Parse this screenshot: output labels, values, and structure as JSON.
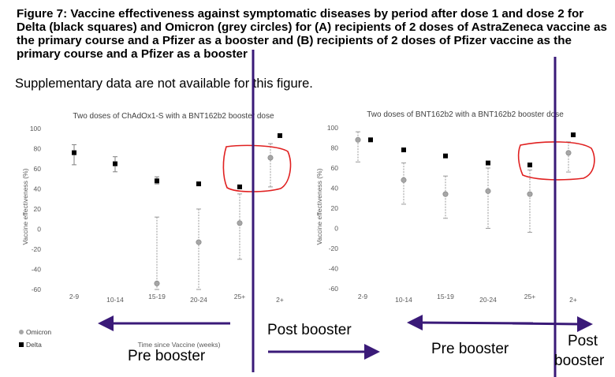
{
  "figure": {
    "title": "Figure 7: Vaccine effectiveness against symptomatic diseases by period after dose 1 and dose 2 for Delta (black squares) and Omicron (grey circles) for (A) recipients of 2 doses of AstraZeneca vaccine as the primary course and a Pfizer as a booster and (B) recipients of 2 doses of Pfizer vaccine as the primary course and a Pfizer as a booster",
    "note": "Supplementary data are not available for this figure."
  },
  "annotations": {
    "left_pre": "Pre booster",
    "middle_post": "Post booster",
    "right_pre": "Pre booster",
    "right_post_line1": "Post",
    "right_post_line2": "booster"
  },
  "colors": {
    "delta": "#000000",
    "omicron": "#a6a6a6",
    "arrow": "#3a1a78",
    "circle": "#e02020"
  },
  "chart_data": [
    {
      "type": "scatter",
      "title": "Two doses of ChAdOx1-S with a BNT162b2 booster dose",
      "xlabel": "Time since Vaccine (weeks)",
      "ylabel": "Vaccine effectiveness (%)",
      "ylim": [
        -60,
        100
      ],
      "yticks": [
        -60,
        -40,
        -20,
        0,
        20,
        40,
        60,
        80,
        100
      ],
      "categories": [
        "2-9",
        "10-14",
        "15-19",
        "20-24",
        "25+",
        "2+"
      ],
      "legend": [
        "Omicron",
        "Delta"
      ],
      "series": [
        {
          "name": "Delta",
          "marker": "square",
          "values": [
            76,
            65,
            48,
            45,
            42,
            93
          ]
        },
        {
          "name": "Omicron",
          "marker": "circle",
          "values": [
            null,
            null,
            -54,
            -13,
            6,
            71
          ],
          "ci_low": [
            null,
            null,
            -60,
            -60,
            -30,
            42
          ],
          "ci_high": [
            null,
            null,
            12,
            20,
            35,
            85
          ]
        }
      ],
      "delta_ci_low": [
        64,
        57,
        45,
        null,
        null,
        null
      ],
      "delta_ci_high": [
        84,
        72,
        52,
        null,
        null,
        null
      ]
    },
    {
      "type": "scatter",
      "title": "Two doses of BNT162b2 with a BNT162b2 booster dose",
      "xlabel": "",
      "ylabel": "Vaccine effectiveness (%)",
      "ylim": [
        -60,
        100
      ],
      "yticks": [
        -60,
        -40,
        -20,
        0,
        20,
        40,
        60,
        80,
        100
      ],
      "categories": [
        "2-9",
        "10-14",
        "15-19",
        "20-24",
        "25+",
        "2+"
      ],
      "legend": [],
      "series": [
        {
          "name": "Delta",
          "marker": "square",
          "values": [
            88,
            78,
            72,
            65,
            63,
            93
          ]
        },
        {
          "name": "Omicron",
          "marker": "circle",
          "values": [
            88,
            48,
            34,
            37,
            34,
            75
          ],
          "ci_low": [
            66,
            24,
            10,
            0,
            -4,
            56
          ],
          "ci_high": [
            96,
            65,
            52,
            60,
            58,
            86
          ]
        }
      ]
    }
  ]
}
